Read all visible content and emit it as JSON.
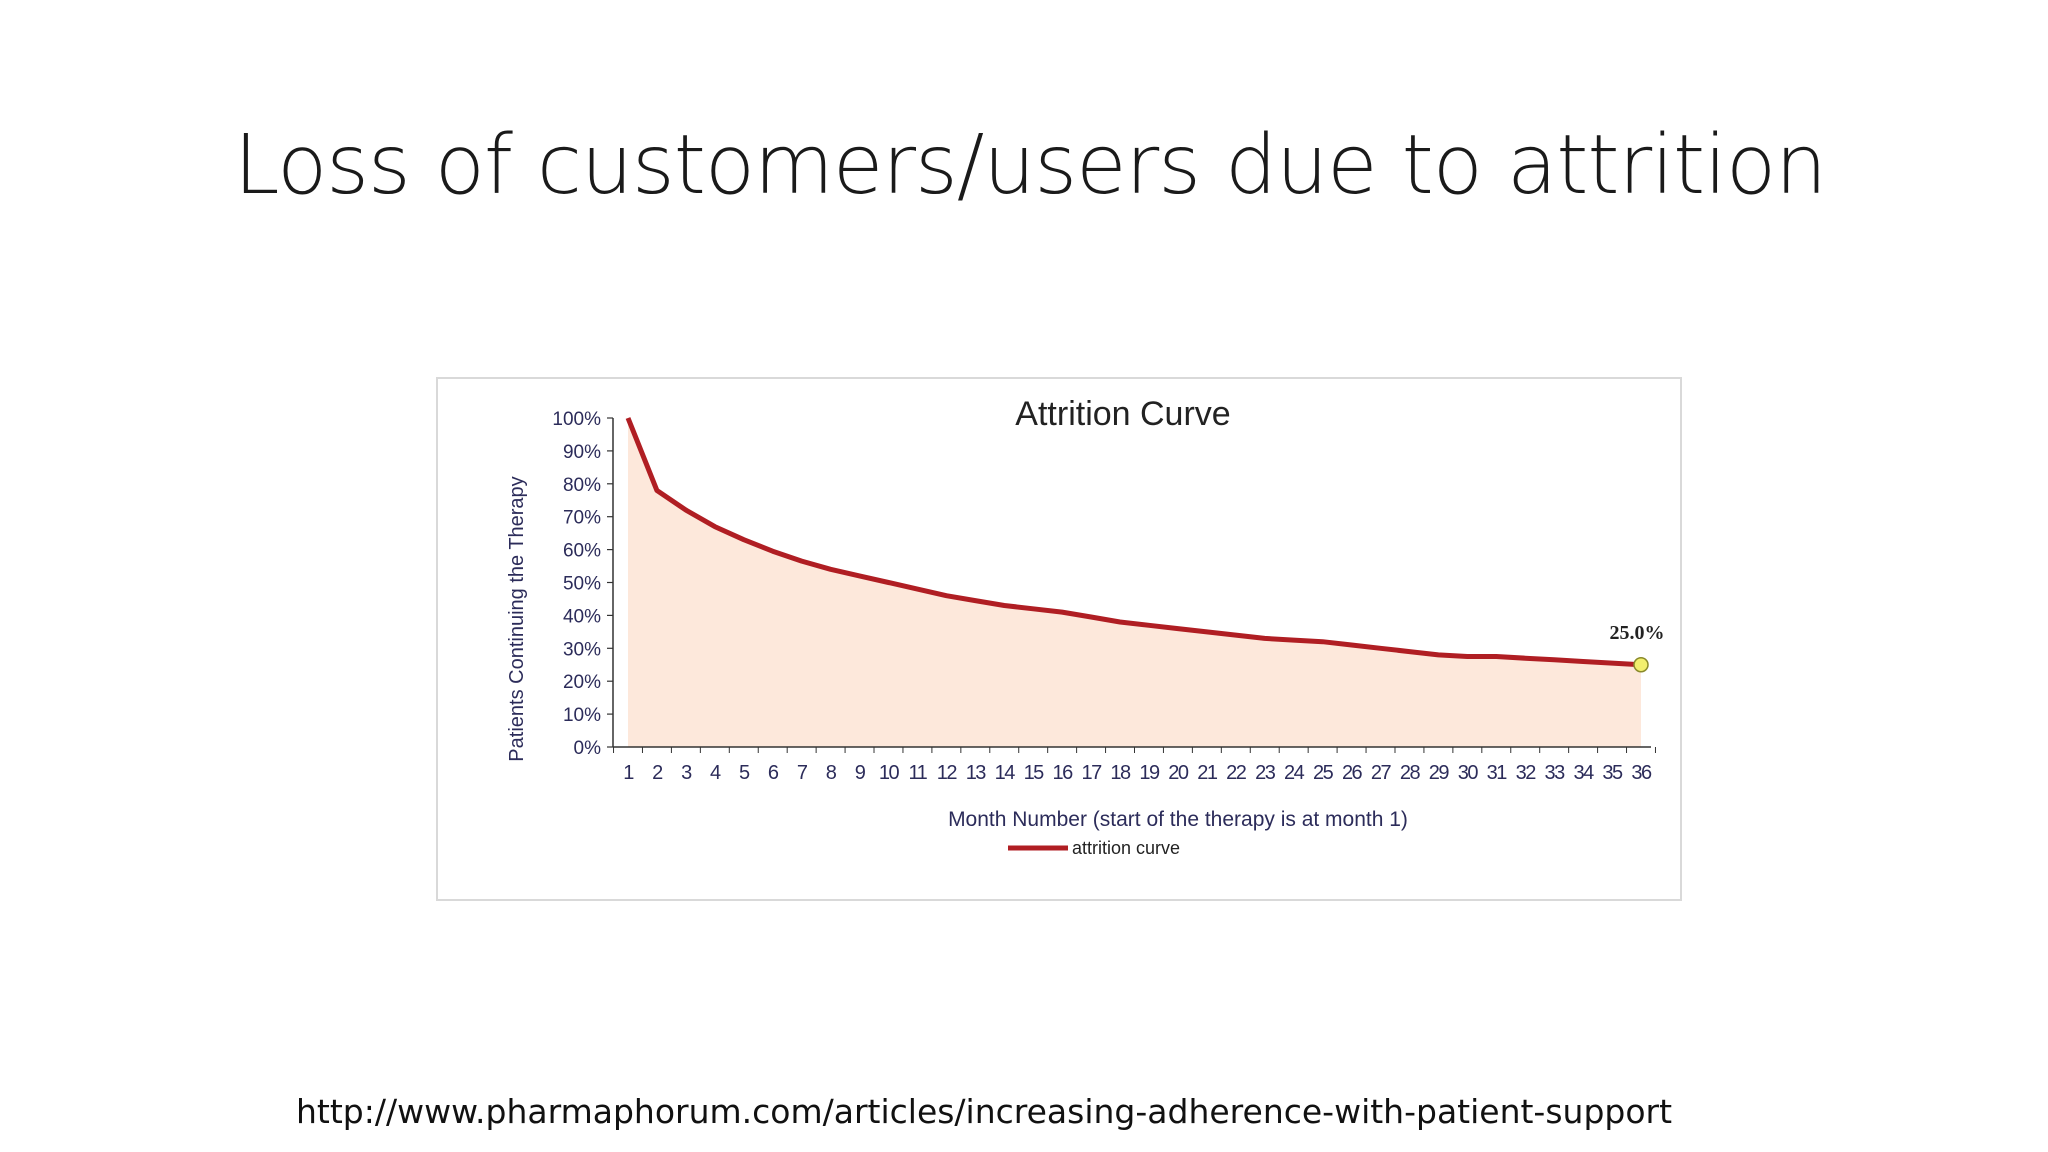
{
  "slide": {
    "title": "Loss of customers/users due to attrition",
    "source_url": "http://www.pharmaphorum.com/articles/increasing-adherence-with-patient-support"
  },
  "chart_data": {
    "type": "area",
    "title": "Attrition Curve",
    "xlabel": "Month Number (start of the therapy is at month 1)",
    "ylabel": "Patients Continuing the Therapy",
    "x": [
      1,
      2,
      3,
      4,
      5,
      6,
      7,
      8,
      9,
      10,
      11,
      12,
      13,
      14,
      15,
      16,
      17,
      18,
      19,
      20,
      21,
      22,
      23,
      24,
      25,
      26,
      27,
      28,
      29,
      30,
      31,
      32,
      33,
      34,
      35,
      36
    ],
    "ylim": [
      0,
      100
    ],
    "yticks": [
      "0%",
      "10%",
      "20%",
      "30%",
      "40%",
      "50%",
      "60%",
      "70%",
      "80%",
      "90%",
      "100%"
    ],
    "series": [
      {
        "name": "attrition curve",
        "values": [
          100,
          78,
          72,
          67,
          63,
          59.5,
          56.5,
          54,
          52,
          50,
          48,
          46,
          44.5,
          43,
          42,
          41,
          39.5,
          38,
          37,
          36,
          35,
          34,
          33,
          32.5,
          32,
          31,
          30,
          29,
          28,
          27.5,
          27.5,
          27,
          26.5,
          26,
          25.5,
          25
        ]
      }
    ],
    "annotations": [
      {
        "x": 36,
        "y": 25,
        "label": "25.0%"
      }
    ],
    "grid": false,
    "legend": "bottom-center",
    "colors": {
      "line": "#b01e23",
      "fill": "#fde8db",
      "marker": "#f2ef6e",
      "marker_stroke": "#8a8a2a",
      "axis_text": "#2c2c5a",
      "title_text": "#222222"
    }
  }
}
